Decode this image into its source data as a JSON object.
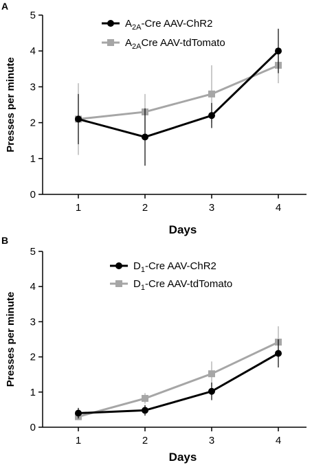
{
  "chart_data": [
    {
      "panel": "A",
      "type": "line",
      "title": "",
      "xlabel": "Days",
      "ylabel": "Presses per minute",
      "x": [
        1,
        2,
        3,
        4
      ],
      "xticks": [
        "1",
        "2",
        "3",
        "4"
      ],
      "yticks": [
        "0",
        "1",
        "2",
        "3",
        "4",
        "5"
      ],
      "ylim": [
        0,
        5
      ],
      "legend_position": "top",
      "series": [
        {
          "name_main": "A",
          "name_sub": "2A",
          "name_rest": "-Cre AAV-ChR2",
          "marker": "circle",
          "color": "#000000",
          "values": [
            2.1,
            1.6,
            2.2,
            4.0
          ],
          "errors": [
            0.7,
            0.8,
            0.35,
            0.62
          ]
        },
        {
          "name_main": "A",
          "name_sub": "2A",
          "name_rest": "Cre AAV-tdTomato",
          "marker": "square",
          "color": "#a6a6a6",
          "values": [
            2.1,
            2.3,
            2.8,
            3.6
          ],
          "errors": [
            1.0,
            0.5,
            0.8,
            0.5
          ]
        }
      ]
    },
    {
      "panel": "B",
      "type": "line",
      "title": "",
      "xlabel": "Days",
      "ylabel": "Presses per minute",
      "x": [
        1,
        2,
        3,
        4
      ],
      "xticks": [
        "1",
        "2",
        "3",
        "4"
      ],
      "yticks": [
        "0",
        "1",
        "2",
        "3",
        "4",
        "5"
      ],
      "ylim": [
        0,
        5
      ],
      "legend_position": "top",
      "series": [
        {
          "name_main": "D",
          "name_sub": "1",
          "name_rest": "-Cre AAV-ChR2",
          "marker": "circle",
          "color": "#000000",
          "values": [
            0.4,
            0.48,
            1.02,
            2.1
          ],
          "errors": [
            0.15,
            0.15,
            0.25,
            0.4
          ]
        },
        {
          "name_main": "D",
          "name_sub": "1",
          "name_rest": "-Cre AAV-tdTomato",
          "marker": "square",
          "color": "#a6a6a6",
          "values": [
            0.3,
            0.82,
            1.52,
            2.42
          ],
          "errors": [
            0.1,
            0.15,
            0.35,
            0.45
          ]
        }
      ]
    }
  ]
}
